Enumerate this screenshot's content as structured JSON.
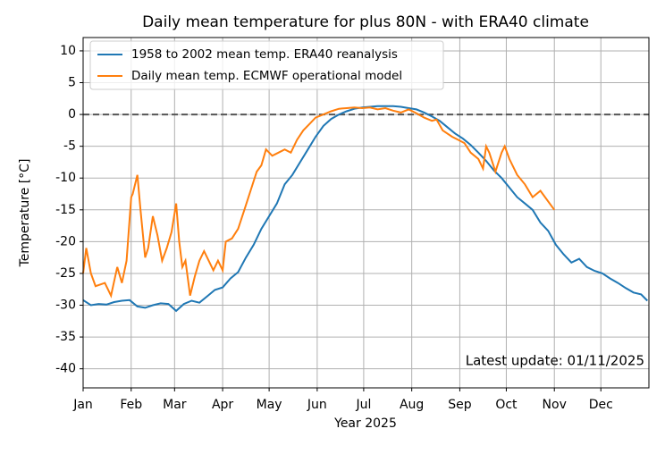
{
  "chart_data": {
    "type": "line",
    "title": "Daily mean temperature for plus 80N - with ERA40 climate",
    "x_label": "Year 2025",
    "y_label": "Temperature [°C]",
    "annotation": "Latest update: 01/11/2025",
    "xlim": [
      0,
      365
    ],
    "ylim": [
      -43,
      12.1
    ],
    "xticks": [
      {
        "value": 0,
        "label": "Jan"
      },
      {
        "value": 31,
        "label": "Feb"
      },
      {
        "value": 59,
        "label": "Mar"
      },
      {
        "value": 90,
        "label": "Apr"
      },
      {
        "value": 120,
        "label": "May"
      },
      {
        "value": 151,
        "label": "Jun"
      },
      {
        "value": 181,
        "label": "Jul"
      },
      {
        "value": 212,
        "label": "Aug"
      },
      {
        "value": 243,
        "label": "Sep"
      },
      {
        "value": 273,
        "label": "Oct"
      },
      {
        "value": 304,
        "label": "Nov"
      },
      {
        "value": 334,
        "label": "Dec"
      }
    ],
    "yticks": [
      10,
      5,
      0,
      -5,
      -10,
      -15,
      -20,
      -25,
      -30,
      -35,
      -40
    ],
    "grid": true,
    "hline": 0,
    "legend": "upper left",
    "series": [
      {
        "name": "1958 to 2002 mean temp. ERA40 reanalysis",
        "color": "#1f77b4",
        "x": [
          0,
          5,
          10,
          15,
          20,
          25,
          30,
          35,
          40,
          45,
          50,
          55,
          60,
          65,
          70,
          75,
          80,
          85,
          90,
          95,
          100,
          105,
          110,
          115,
          120,
          125,
          130,
          135,
          140,
          145,
          150,
          155,
          160,
          165,
          170,
          175,
          180,
          185,
          190,
          195,
          200,
          205,
          210,
          215,
          220,
          225,
          230,
          235,
          240,
          245,
          250,
          255,
          260,
          265,
          270,
          275,
          280,
          285,
          290,
          295,
          300,
          305,
          310,
          315,
          320,
          325,
          330,
          335,
          340,
          345,
          350,
          355,
          360,
          364
        ],
        "values": [
          -29.2,
          -30,
          -29.8,
          -29.9,
          -29.5,
          -29.3,
          -29.2,
          -30.2,
          -30.4,
          -30,
          -29.7,
          -29.8,
          -30.9,
          -29.8,
          -29.3,
          -29.6,
          -28.6,
          -27.6,
          -27.2,
          -25.8,
          -24.8,
          -22.5,
          -20.5,
          -18,
          -16,
          -14,
          -11,
          -9.5,
          -7.5,
          -5.5,
          -3.5,
          -1.8,
          -0.7,
          0,
          0.5,
          0.9,
          1.1,
          1.2,
          1.3,
          1.3,
          1.3,
          1.2,
          1,
          0.8,
          0.3,
          -0.3,
          -1,
          -2,
          -3,
          -3.8,
          -4.8,
          -6,
          -7.3,
          -8.8,
          -10,
          -11.5,
          -13,
          -14,
          -15,
          -17,
          -18.3,
          -20.5,
          -22,
          -23.3,
          -22.7,
          -24,
          -24.6,
          -25,
          -25.8,
          -26.5,
          -27.3,
          -28,
          -28.3,
          -29.3
        ]
      },
      {
        "name": "Daily mean temp. ECMWF operational model",
        "color": "#ff7f0e",
        "x": [
          0,
          2,
          5,
          8,
          14,
          18,
          22,
          25,
          28,
          31,
          32,
          35,
          37,
          40,
          42,
          45,
          48,
          51,
          54,
          57,
          60,
          62,
          64,
          66,
          69,
          72,
          75,
          78,
          81,
          84,
          87,
          90,
          92,
          96,
          100,
          104,
          108,
          112,
          115,
          118,
          122,
          126,
          130,
          134,
          138,
          142,
          146,
          150,
          155,
          160,
          165,
          170,
          175,
          180,
          185,
          190,
          195,
          200,
          205,
          210,
          215,
          220,
          225,
          228,
          232,
          238,
          242,
          246,
          250,
          255,
          258,
          260,
          262,
          266,
          270,
          272,
          275,
          280,
          285,
          290,
          295,
          304
        ],
        "values": [
          -25,
          -21,
          -25,
          -27,
          -26.5,
          -28.5,
          -24,
          -26.5,
          -23,
          -13,
          -12.5,
          -9.5,
          -15,
          -22.5,
          -21,
          -16,
          -19,
          -23,
          -21,
          -18.5,
          -14,
          -20,
          -24,
          -23,
          -28.5,
          -25.5,
          -23,
          -21.5,
          -23,
          -24.5,
          -23,
          -24.5,
          -20,
          -19.5,
          -18,
          -15,
          -12,
          -9,
          -8,
          -5.5,
          -6.5,
          -6,
          -5.5,
          -6,
          -4,
          -2.5,
          -1.5,
          -0.5,
          0,
          0.5,
          0.9,
          1,
          1.1,
          1,
          1.1,
          0.8,
          1,
          0.6,
          0.3,
          0.8,
          0.2,
          -0.5,
          -1,
          -0.8,
          -2.5,
          -3.5,
          -4,
          -4.5,
          -6,
          -7,
          -8.5,
          -5,
          -6,
          -9,
          -6,
          -5,
          -7,
          -9.5,
          -11,
          -13,
          -12,
          -15
        ]
      }
    ]
  }
}
